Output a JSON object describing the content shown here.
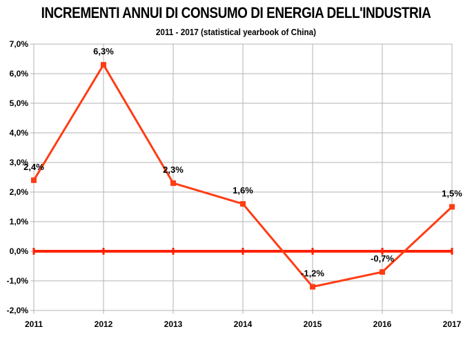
{
  "chart_data": {
    "type": "line",
    "title": "INCREMENTI ANNUI DI CONSUMO DI ENERGIA DELL'INDUSTRIA",
    "subtitle": "2011 - 2017   (statistical yearbook of China)",
    "xlabel": "",
    "ylabel": "",
    "categories": [
      "2011",
      "2012",
      "2013",
      "2014",
      "2015",
      "2016",
      "2017"
    ],
    "series": [
      {
        "values": [
          2.4,
          6.3,
          2.3,
          1.6,
          -1.2,
          -0.7,
          1.5
        ],
        "labels": [
          "2,4%",
          "6,3%",
          "2,3%",
          "1,6%",
          "-1,2%",
          "-0,7%",
          "1,5%"
        ],
        "color": "#ff3c14"
      }
    ],
    "ylim": [
      -2.0,
      7.0
    ],
    "yticks": [
      {
        "value": 7,
        "label": "7,0%"
      },
      {
        "value": 6,
        "label": "6,0%"
      },
      {
        "value": 5,
        "label": "5,0%"
      },
      {
        "value": 4,
        "label": "4,0%"
      },
      {
        "value": 3,
        "label": "3,0%"
      },
      {
        "value": 2,
        "label": "2,0%"
      },
      {
        "value": 1,
        "label": "1,0%"
      },
      {
        "value": 0,
        "label": "0,0%"
      },
      {
        "value": -1,
        "label": "-1,0%"
      },
      {
        "value": -2,
        "label": "-2,0%"
      }
    ],
    "grid": true,
    "legend": "none",
    "zero_line_color": "#ff2000",
    "grid_color": "#b3b3b3"
  }
}
